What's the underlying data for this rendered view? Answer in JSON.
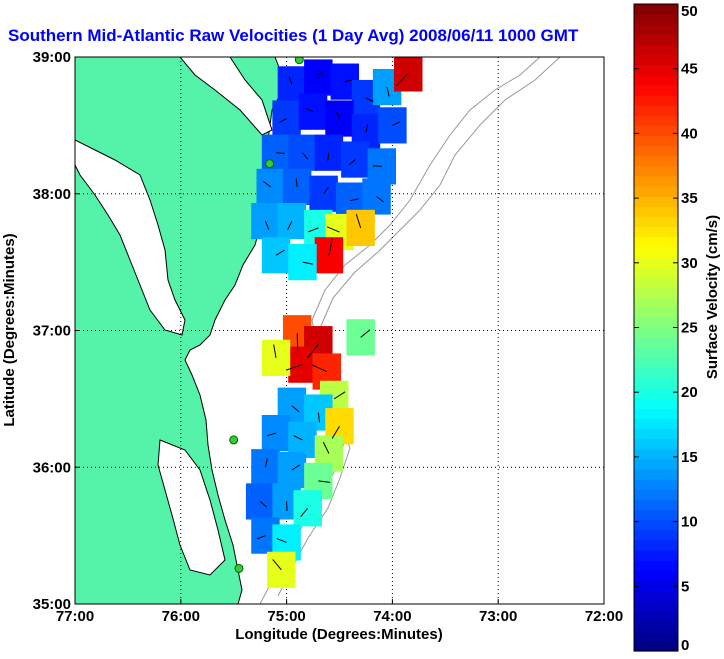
{
  "chart_data": {
    "type": "heatmap",
    "title": "Southern Mid-Atlantic Raw Velocities (1 Day Avg) 2008/06/11 1000 GMT",
    "xlabel": "Longitude (Degrees:Minutes)",
    "ylabel": "Latitude (Degrees:Minutes)",
    "xlim": [
      -77,
      -72
    ],
    "ylim": [
      35,
      39
    ],
    "xticks": [
      {
        "value": -77,
        "label": "77:00"
      },
      {
        "value": -76,
        "label": "76:00"
      },
      {
        "value": -75,
        "label": "75:00"
      },
      {
        "value": -74,
        "label": "74:00"
      },
      {
        "value": -73,
        "label": "73:00"
      },
      {
        "value": -72,
        "label": "72:00"
      }
    ],
    "yticks": [
      {
        "value": 35,
        "label": "35:00"
      },
      {
        "value": 36,
        "label": "36:00"
      },
      {
        "value": 37,
        "label": "37:00"
      },
      {
        "value": 38,
        "label": "38:00"
      },
      {
        "value": 39,
        "label": "39:00"
      }
    ],
    "grid": true,
    "colorbar": {
      "label": "Surface Velocity (cm/s)",
      "range": [
        0,
        50
      ],
      "ticks": [
        0,
        5,
        10,
        15,
        20,
        25,
        30,
        35,
        40,
        45,
        50
      ],
      "colormap": "jet"
    },
    "colors": {
      "land": "#55f2aa",
      "title": "#0000ff",
      "station": "#33cc33",
      "isobath": "#999999"
    },
    "stations": [
      {
        "lon": -74.88,
        "lat": 38.98
      },
      {
        "lon": -75.16,
        "lat": 38.22
      },
      {
        "lon": -75.5,
        "lat": 36.2
      },
      {
        "lon": -75.45,
        "lat": 35.26
      }
    ],
    "fields": [
      {
        "region": "north",
        "cells": [
          {
            "lon": -74.95,
            "lat": 38.8,
            "speed": 8
          },
          {
            "lon": -74.7,
            "lat": 38.85,
            "speed": 6
          },
          {
            "lon": -74.45,
            "lat": 38.82,
            "speed": 7
          },
          {
            "lon": -74.25,
            "lat": 38.7,
            "speed": 9
          },
          {
            "lon": -74.05,
            "lat": 38.78,
            "speed": 14
          },
          {
            "lon": -73.85,
            "lat": 38.88,
            "speed": 46
          },
          {
            "lon": -75.0,
            "lat": 38.55,
            "speed": 9
          },
          {
            "lon": -74.75,
            "lat": 38.6,
            "speed": 7
          },
          {
            "lon": -74.5,
            "lat": 38.55,
            "speed": 6
          },
          {
            "lon": -74.25,
            "lat": 38.45,
            "speed": 8
          },
          {
            "lon": -74.0,
            "lat": 38.5,
            "speed": 10
          },
          {
            "lon": -75.1,
            "lat": 38.3,
            "speed": 11
          },
          {
            "lon": -74.85,
            "lat": 38.3,
            "speed": 10
          },
          {
            "lon": -74.6,
            "lat": 38.3,
            "speed": 8
          },
          {
            "lon": -74.35,
            "lat": 38.25,
            "speed": 9
          },
          {
            "lon": -74.1,
            "lat": 38.2,
            "speed": 12
          },
          {
            "lon": -75.15,
            "lat": 38.05,
            "speed": 13
          },
          {
            "lon": -74.9,
            "lat": 38.05,
            "speed": 11
          },
          {
            "lon": -74.65,
            "lat": 38.0,
            "speed": 9
          },
          {
            "lon": -74.4,
            "lat": 37.95,
            "speed": 11
          },
          {
            "lon": -74.15,
            "lat": 37.98,
            "speed": 12
          },
          {
            "lon": -75.2,
            "lat": 37.8,
            "speed": 14
          },
          {
            "lon": -74.95,
            "lat": 37.8,
            "speed": 15
          },
          {
            "lon": -74.7,
            "lat": 37.75,
            "speed": 20
          },
          {
            "lon": -74.5,
            "lat": 37.72,
            "speed": 30
          },
          {
            "lon": -74.3,
            "lat": 37.75,
            "speed": 34
          },
          {
            "lon": -74.6,
            "lat": 37.55,
            "speed": 44
          },
          {
            "lon": -75.1,
            "lat": 37.55,
            "speed": 16
          },
          {
            "lon": -74.85,
            "lat": 37.5,
            "speed": 18
          }
        ]
      },
      {
        "region": "middle",
        "cells": [
          {
            "lon": -74.9,
            "lat": 36.98,
            "speed": 40
          },
          {
            "lon": -74.7,
            "lat": 36.9,
            "speed": 46
          },
          {
            "lon": -74.85,
            "lat": 36.75,
            "speed": 45
          },
          {
            "lon": -74.62,
            "lat": 36.7,
            "speed": 42
          },
          {
            "lon": -75.1,
            "lat": 36.8,
            "speed": 30
          },
          {
            "lon": -74.3,
            "lat": 36.95,
            "speed": 24
          },
          {
            "lon": -74.55,
            "lat": 36.5,
            "speed": 28
          }
        ]
      },
      {
        "region": "south",
        "cells": [
          {
            "lon": -74.95,
            "lat": 36.45,
            "speed": 14
          },
          {
            "lon": -74.7,
            "lat": 36.4,
            "speed": 16
          },
          {
            "lon": -74.5,
            "lat": 36.3,
            "speed": 33
          },
          {
            "lon": -75.1,
            "lat": 36.25,
            "speed": 13
          },
          {
            "lon": -74.85,
            "lat": 36.2,
            "speed": 15
          },
          {
            "lon": -74.6,
            "lat": 36.1,
            "speed": 27
          },
          {
            "lon": -75.2,
            "lat": 36.0,
            "speed": 12
          },
          {
            "lon": -74.95,
            "lat": 35.98,
            "speed": 14
          },
          {
            "lon": -74.7,
            "lat": 35.9,
            "speed": 24
          },
          {
            "lon": -75.25,
            "lat": 35.75,
            "speed": 11
          },
          {
            "lon": -75.0,
            "lat": 35.75,
            "speed": 14
          },
          {
            "lon": -74.8,
            "lat": 35.7,
            "speed": 20
          },
          {
            "lon": -75.2,
            "lat": 35.5,
            "speed": 12
          },
          {
            "lon": -75.0,
            "lat": 35.45,
            "speed": 18
          },
          {
            "lon": -75.05,
            "lat": 35.25,
            "speed": 30
          }
        ]
      }
    ]
  }
}
